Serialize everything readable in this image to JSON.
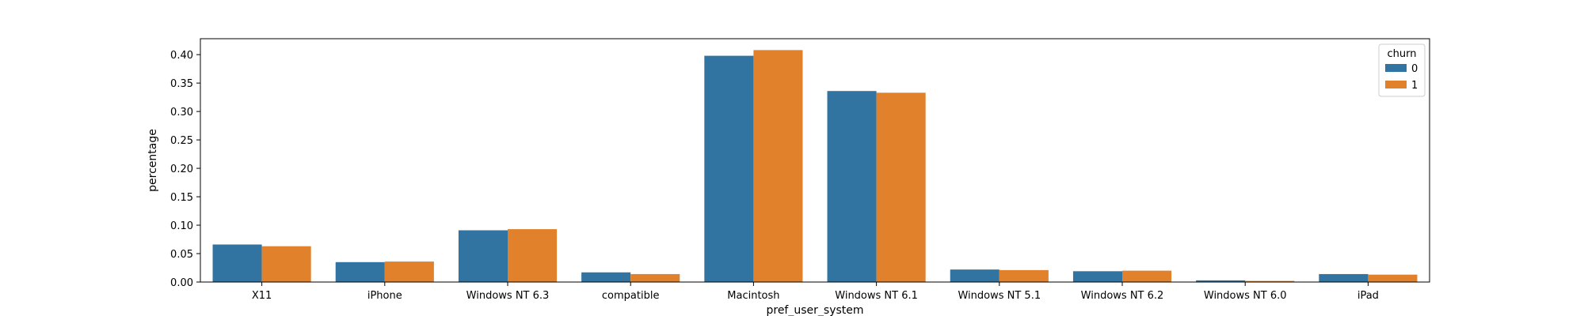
{
  "chart_data": {
    "type": "bar",
    "title": "",
    "xlabel": "pref_user_system",
    "ylabel": "percentage",
    "categories": [
      "X11",
      "iPhone",
      "Windows NT 6.3",
      "compatible",
      "Macintosh",
      "Windows NT 6.1",
      "Windows NT 5.1",
      "Windows NT 6.2",
      "Windows NT 6.0",
      "iPad"
    ],
    "series": [
      {
        "name": "0",
        "color": "#3274a1",
        "values": [
          0.066,
          0.035,
          0.091,
          0.017,
          0.398,
          0.336,
          0.022,
          0.019,
          0.003,
          0.014
        ]
      },
      {
        "name": "1",
        "color": "#e1812c",
        "values": [
          0.063,
          0.036,
          0.093,
          0.014,
          0.408,
          0.333,
          0.021,
          0.02,
          0.002,
          0.013
        ]
      }
    ],
    "ylim": [
      0,
      0.428
    ],
    "yticks": [
      "0.00",
      "0.05",
      "0.10",
      "0.15",
      "0.20",
      "0.25",
      "0.30",
      "0.35",
      "0.40"
    ],
    "legend": {
      "title": "churn",
      "position": "top-right"
    },
    "grid": false
  }
}
